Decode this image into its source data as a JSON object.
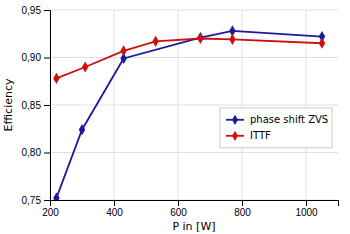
{
  "chart_data": {
    "type": "line",
    "xlabel": "P in [W]",
    "ylabel": "Efficiency",
    "series": [
      {
        "name": "phase shift ZVS",
        "color": "#1a1a9c",
        "marker": "diamond",
        "line_style": "solid",
        "x": [
          220,
          300,
          430,
          670,
          770,
          1050
        ],
        "values": [
          0.752,
          0.824,
          0.899,
          0.921,
          0.928,
          0.922
        ]
      },
      {
        "name": "ITTF",
        "color": "#cc1111",
        "marker": "diamond",
        "line_style": "solid",
        "x": [
          220,
          310,
          430,
          530,
          670,
          770,
          1050
        ],
        "values": [
          0.878,
          0.89,
          0.907,
          0.917,
          0.92,
          0.919,
          0.915
        ]
      }
    ],
    "xlim": [
      200,
      1100
    ],
    "ylim": [
      0.75,
      0.95
    ],
    "xticks": [
      200,
      400,
      600,
      800,
      1000
    ],
    "yticks": [
      {
        "value": 0.75,
        "label": "0,75"
      },
      {
        "value": 0.8,
        "label": "0,80"
      },
      {
        "value": 0.85,
        "label": "0,85"
      },
      {
        "value": 0.9,
        "label": "0,90"
      },
      {
        "value": 0.95,
        "label": "0,95"
      }
    ],
    "grid": true,
    "legend": "right"
  }
}
